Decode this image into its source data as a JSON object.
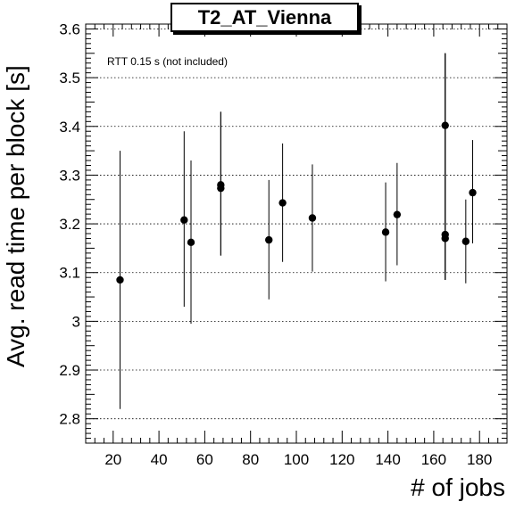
{
  "chart_data": {
    "type": "scatter",
    "title": "T2_AT_Vienna",
    "xlabel": "# of jobs",
    "ylabel": "Avg. read time per block [s]",
    "annotation": "RTT 0.15 s (not included)",
    "xlim": [
      8,
      192
    ],
    "ylim": [
      2.75,
      3.61
    ],
    "x_ticks": [
      20,
      40,
      60,
      80,
      100,
      120,
      140,
      160,
      180
    ],
    "x_tick_labels": [
      "20",
      "40",
      "60",
      "80",
      "100",
      "120",
      "140",
      "160",
      "180"
    ],
    "y_ticks": [
      2.8,
      2.9,
      3.0,
      3.1,
      3.2,
      3.3,
      3.4,
      3.5,
      3.6
    ],
    "y_tick_labels": [
      "2.8",
      "2.9",
      "3",
      "3.1",
      "3.2",
      "3.3",
      "3.4",
      "3.5",
      "3.6"
    ],
    "grid": {
      "x": false,
      "y": true,
      "style": "dotted"
    },
    "marker_color": "#000000",
    "points": [
      {
        "x": 23,
        "y": 3.085,
        "err_low": 2.82,
        "err_high": 3.35
      },
      {
        "x": 51,
        "y": 3.208,
        "err_low": 3.03,
        "err_high": 3.39
      },
      {
        "x": 54,
        "y": 3.162,
        "err_low": 2.995,
        "err_high": 3.33
      },
      {
        "x": 67,
        "y": 3.28,
        "err_low": 3.135,
        "err_high": 3.43
      },
      {
        "x": 67,
        "y": 3.273,
        "err_low": 3.135,
        "err_high": 3.43
      },
      {
        "x": 88,
        "y": 3.167,
        "err_low": 3.045,
        "err_high": 3.29
      },
      {
        "x": 94,
        "y": 3.243,
        "err_low": 3.122,
        "err_high": 3.365
      },
      {
        "x": 107,
        "y": 3.212,
        "err_low": 3.102,
        "err_high": 3.322
      },
      {
        "x": 139,
        "y": 3.183,
        "err_low": 3.082,
        "err_high": 3.285
      },
      {
        "x": 144,
        "y": 3.219,
        "err_low": 3.115,
        "err_high": 3.325
      },
      {
        "x": 165,
        "y": 3.402,
        "err_low": 3.085,
        "err_high": 3.55
      },
      {
        "x": 165,
        "y": 3.178,
        "err_low": 3.085,
        "err_high": 3.55
      },
      {
        "x": 165,
        "y": 3.17,
        "err_low": 3.085,
        "err_high": 3.55
      },
      {
        "x": 174,
        "y": 3.164,
        "err_low": 3.078,
        "err_high": 3.25
      },
      {
        "x": 177,
        "y": 3.264,
        "err_low": 3.16,
        "err_high": 3.372
      }
    ]
  }
}
